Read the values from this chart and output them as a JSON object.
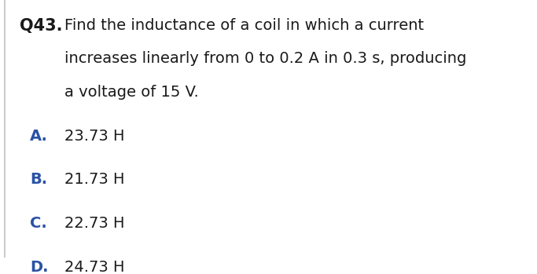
{
  "background_color": "#ffffff",
  "question_number": "Q43.",
  "question_number_color": "#1a1a1a",
  "question_number_bold": true,
  "question_text_line1": "Find the inductance of a coil in which a current",
  "question_text_line2": "increases linearly from 0 to 0.2 A in 0.3 s, producing",
  "question_text_line3": "a voltage of 15 V.",
  "question_text_color": "#1a1a1a",
  "options": [
    {
      "label": "A.",
      "text": "23.73 H"
    },
    {
      "label": "B.",
      "text": "21.73 H"
    },
    {
      "label": "C.",
      "text": "22.73 H"
    },
    {
      "label": "D.",
      "text": "24.73 H"
    }
  ],
  "option_label_color": "#2952a3",
  "option_text_color": "#1a1a1a",
  "left_border_color": "#cccccc",
  "font_size_question_number": 15,
  "font_size_question_text": 14,
  "font_size_options": 14
}
